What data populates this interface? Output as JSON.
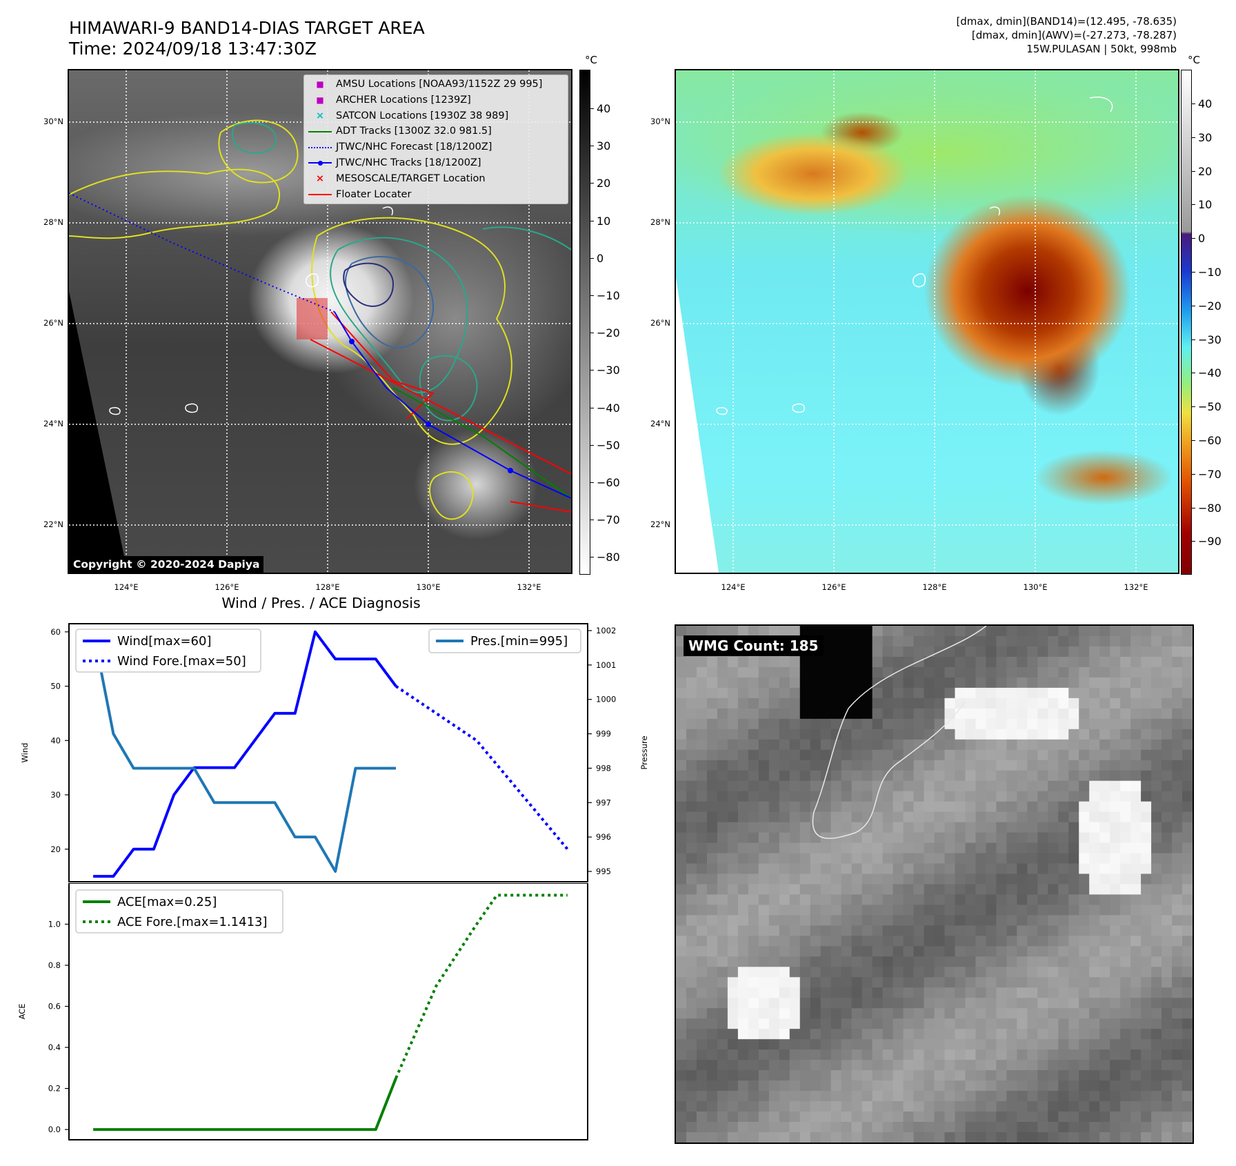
{
  "header": {
    "title_line1": "HIMAWARI-9 BAND14-DIAS TARGET AREA",
    "title_line2": "Time: 2024/09/18 13:47:30Z",
    "info_line1": "[dmax, dmin](BAND14)=(12.495, -78.635)",
    "info_line2": "[dmax, dmin](AWV)=(-27.273, -78.287)",
    "info_line3": "15W.PULASAN | 50kt, 998mb"
  },
  "map": {
    "lon_labels": [
      "124°E",
      "126°E",
      "128°E",
      "130°E",
      "132°E"
    ],
    "lat_labels": [
      "30°N",
      "28°N",
      "26°N",
      "24°N",
      "22°N"
    ],
    "copyright": "Copyright © 2020-2024 Dapiya",
    "legend": [
      {
        "label": "AMSU Locations [NOAA93/1152Z 29 995]",
        "marker": "square",
        "color": "#bf00bf"
      },
      {
        "label": "ARCHER Locations [1239Z]",
        "marker": "square",
        "color": "#bf00bf"
      },
      {
        "label": "SATCON Locations [1930Z 38 989]",
        "marker": "x",
        "color": "#00bfbf"
      },
      {
        "label": "ADT Tracks [1300Z 32.0 981.5]",
        "marker": "line",
        "color": "#008000"
      },
      {
        "label": "JTWC/NHC Forecast [18/1200Z]",
        "marker": "dotted",
        "color": "#0000ff"
      },
      {
        "label": "JTWC/NHC Tracks [18/1200Z]",
        "marker": "line-dot",
        "color": "#0000ff"
      },
      {
        "label": "MESOSCALE/TARGET Location",
        "marker": "x",
        "color": "#ff0000"
      },
      {
        "label": "Floater Locater",
        "marker": "line",
        "color": "#ff0000"
      }
    ]
  },
  "colorbar_band14": {
    "unit": "°C",
    "ticks": [
      "40",
      "30",
      "20",
      "10",
      "0",
      "−10",
      "−20",
      "−30",
      "−40",
      "−50",
      "−60",
      "−70",
      "−80"
    ]
  },
  "colorbar_awv": {
    "unit": "°C",
    "ticks": [
      "40",
      "30",
      "20",
      "10",
      "0",
      "−10",
      "−20",
      "−30",
      "−40",
      "−50",
      "−60",
      "−70",
      "−80",
      "−90"
    ]
  },
  "wmg": {
    "label": "WMG Count: 185"
  },
  "chart_data": [
    {
      "type": "line",
      "title": "Wind / Pres. / ACE Diagnosis",
      "ylabel": "Wind",
      "y2label": "Pressure",
      "ylim": [
        14,
        61.5
      ],
      "y2lim": [
        994.7,
        1002.2
      ],
      "yticks": [
        20,
        30,
        40,
        50,
        60
      ],
      "y2ticks": [
        995,
        996,
        997,
        998,
        999,
        1000,
        1001,
        1002
      ],
      "series": [
        {
          "name": "Wind[max=60]",
          "axis": "left",
          "style": "solid",
          "color": "#0000ff",
          "x": [
            0,
            1,
            2,
            3,
            4,
            5,
            6,
            7,
            8,
            9,
            10,
            11,
            12,
            13,
            14,
            15
          ],
          "values": [
            15,
            15,
            20,
            20,
            30,
            35,
            35,
            35,
            40,
            45,
            45,
            60,
            55,
            55,
            55,
            50
          ]
        },
        {
          "name": "Wind Fore.[max=50]",
          "axis": "left",
          "style": "dotted",
          "color": "#0000ff",
          "x": [
            15,
            19,
            23.5
          ],
          "values": [
            50,
            40,
            20
          ]
        },
        {
          "name": "Pres.[min=995]",
          "axis": "right",
          "style": "solid",
          "color": "#1f77b4",
          "x": [
            0,
            1,
            2,
            3,
            4,
            5,
            6,
            7,
            8,
            9,
            10,
            11,
            12,
            13,
            14,
            15
          ],
          "values": [
            1002,
            999,
            998,
            998,
            998,
            998,
            997,
            997,
            997,
            997,
            996,
            996,
            995,
            998,
            998,
            998
          ]
        }
      ],
      "legend": [
        "upper-left",
        "upper-right"
      ]
    },
    {
      "type": "line",
      "ylabel": "ACE",
      "ylim": [
        -0.05,
        1.2
      ],
      "yticks": [
        0.0,
        0.2,
        0.4,
        0.6,
        0.8,
        1.0
      ],
      "ytick_labels": [
        "0.0",
        "0.2",
        "0.4",
        "0.6",
        "0.8",
        "1.0"
      ],
      "series": [
        {
          "name": "ACE[max=0.25]",
          "style": "solid",
          "color": "#008000",
          "x": [
            0,
            14,
            15
          ],
          "values": [
            0,
            0,
            0.25
          ]
        },
        {
          "name": "ACE Fore.[max=1.1413]",
          "style": "dotted",
          "color": "#008000",
          "x": [
            15,
            17,
            19,
            20,
            23.5
          ],
          "values": [
            0.25,
            0.7,
            1.0,
            1.1413,
            1.1413
          ]
        }
      ],
      "legend": "upper-left"
    }
  ]
}
